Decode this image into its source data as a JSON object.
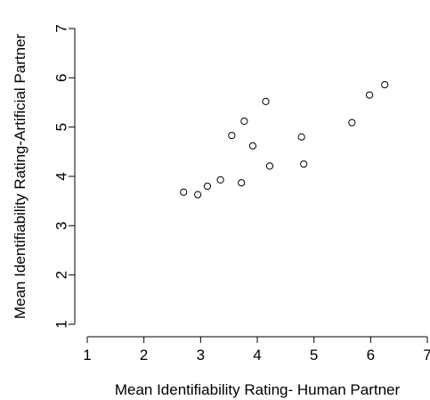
{
  "chart_data": {
    "type": "scatter",
    "title": "",
    "xlabel": "Mean Identifiability Rating- Human Partner",
    "ylabel": "Mean Identifiability Rating-Artificial Partner",
    "xlim": [
      1,
      7
    ],
    "ylim": [
      1,
      7
    ],
    "xticks": [
      1,
      2,
      3,
      4,
      5,
      6,
      7
    ],
    "yticks": [
      1,
      2,
      3,
      4,
      5,
      6,
      7
    ],
    "grid": false,
    "legend": "none",
    "marker": "open-circle",
    "colors": {
      "points": "#000000",
      "axes": "#000000",
      "background": "#ffffff"
    },
    "points": [
      {
        "x": 2.7,
        "y": 3.68
      },
      {
        "x": 2.95,
        "y": 3.63
      },
      {
        "x": 3.12,
        "y": 3.8
      },
      {
        "x": 3.35,
        "y": 3.93
      },
      {
        "x": 3.55,
        "y": 4.83
      },
      {
        "x": 3.72,
        "y": 3.87
      },
      {
        "x": 3.77,
        "y": 5.12
      },
      {
        "x": 3.92,
        "y": 4.62
      },
      {
        "x": 4.15,
        "y": 5.52
      },
      {
        "x": 4.22,
        "y": 4.21
      },
      {
        "x": 4.78,
        "y": 4.8
      },
      {
        "x": 4.82,
        "y": 4.25
      },
      {
        "x": 5.67,
        "y": 5.09
      },
      {
        "x": 5.98,
        "y": 5.65
      },
      {
        "x": 6.25,
        "y": 5.86
      }
    ]
  }
}
